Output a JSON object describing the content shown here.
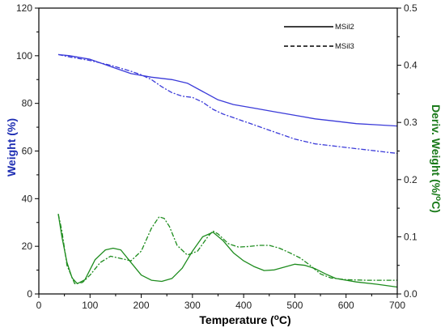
{
  "chart_data": {
    "type": "line",
    "xlabel": "Temperature (",
    "xlabel_sup": "o",
    "xlabel_end": "C)",
    "ylabel_left": "Weight (%)",
    "ylabel_right": "Deriv. Weight (%/",
    "ylabel_right_sup": "o",
    "ylabel_right_end": "C)",
    "xlim": [
      0,
      700
    ],
    "ylim_left": [
      0,
      120
    ],
    "ylim_right": [
      0,
      0.5
    ],
    "xticks": [
      "0",
      "100",
      "200",
      "300",
      "400",
      "500",
      "600",
      "700"
    ],
    "yticks_left": [
      "0",
      "20",
      "40",
      "60",
      "80",
      "100",
      "120"
    ],
    "yticks_right": [
      "0.0",
      "0.1",
      "0.2",
      "0.3",
      "0.4",
      "0.5"
    ],
    "grid": false,
    "legend": [
      {
        "name": "MSil2",
        "style": "solid"
      },
      {
        "name": "MSil3",
        "style": "dashed"
      }
    ],
    "legend_position": "top-right",
    "colors": {
      "weight": "#3b3bd9",
      "derivative": "#1e8c1e",
      "left_axis_title": "#1f2fb3",
      "right_axis_title": "#1a7a1a"
    },
    "series": [
      {
        "name": "MSil2",
        "kind": "weight",
        "axis": "left",
        "style": "solid",
        "x": [
          38,
          60,
          100,
          140,
          180,
          220,
          260,
          290,
          320,
          350,
          380,
          420,
          460,
          500,
          540,
          580,
          620,
          660,
          700
        ],
        "y": [
          100.5,
          100,
          98.5,
          95.5,
          92.5,
          91,
          90,
          88.5,
          85,
          81.5,
          79.5,
          78,
          76.5,
          75,
          73.5,
          72.5,
          71.5,
          71,
          70.5
        ]
      },
      {
        "name": "MSil3",
        "kind": "weight",
        "axis": "left",
        "style": "dashed",
        "x": [
          38,
          60,
          100,
          140,
          180,
          200,
          220,
          240,
          260,
          280,
          300,
          320,
          340,
          360,
          380,
          400,
          420,
          440,
          460,
          480,
          500,
          520,
          540,
          560,
          580,
          600,
          620,
          640,
          660,
          680,
          700
        ],
        "y": [
          100.5,
          99.5,
          98,
          96,
          93.5,
          92,
          90,
          87,
          84.5,
          83,
          82.5,
          80.5,
          77.5,
          75.5,
          74,
          72.5,
          71,
          69.5,
          68,
          66.5,
          65,
          64,
          63,
          62.5,
          62,
          61.5,
          61,
          60.5,
          60,
          59.5,
          59
        ]
      },
      {
        "name": "MSil2",
        "kind": "derivative",
        "axis": "right",
        "style": "solid",
        "x": [
          38,
          45,
          55,
          65,
          75,
          90,
          110,
          130,
          145,
          160,
          180,
          200,
          220,
          240,
          260,
          280,
          300,
          320,
          340,
          360,
          380,
          400,
          420,
          440,
          460,
          480,
          500,
          520,
          540,
          560,
          580,
          620,
          660,
          700
        ],
        "y": [
          0.14,
          0.1,
          0.055,
          0.028,
          0.018,
          0.025,
          0.06,
          0.077,
          0.08,
          0.077,
          0.055,
          0.033,
          0.024,
          0.022,
          0.027,
          0.045,
          0.075,
          0.1,
          0.108,
          0.093,
          0.072,
          0.058,
          0.048,
          0.041,
          0.042,
          0.047,
          0.052,
          0.05,
          0.044,
          0.035,
          0.027,
          0.021,
          0.017,
          0.012
        ]
      },
      {
        "name": "MSil3",
        "kind": "derivative",
        "axis": "right",
        "style": "dashed",
        "x": [
          38,
          45,
          55,
          70,
          85,
          100,
          120,
          140,
          160,
          180,
          200,
          220,
          235,
          245,
          255,
          270,
          290,
          310,
          330,
          340,
          350,
          370,
          390,
          410,
          430,
          450,
          470,
          490,
          510,
          530,
          550,
          570,
          600,
          640,
          700
        ],
        "y": [
          0.14,
          0.11,
          0.05,
          0.018,
          0.02,
          0.033,
          0.055,
          0.066,
          0.062,
          0.058,
          0.075,
          0.115,
          0.135,
          0.132,
          0.118,
          0.085,
          0.068,
          0.075,
          0.1,
          0.11,
          0.105,
          0.088,
          0.082,
          0.083,
          0.085,
          0.085,
          0.08,
          0.072,
          0.063,
          0.05,
          0.035,
          0.028,
          0.025,
          0.024,
          0.024
        ]
      }
    ]
  }
}
